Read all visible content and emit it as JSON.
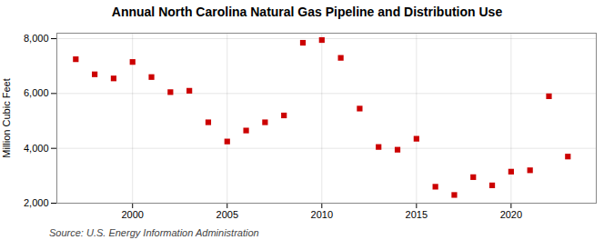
{
  "chart_data": {
    "type": "scatter",
    "title": "Annual North Carolina Natural Gas Pipeline and Distribution Use",
    "ylabel": "Million Cubic Feet",
    "annotations": [
      "Source: U.S. Energy Information Administration"
    ],
    "x": [
      1997,
      1998,
      1999,
      2000,
      2001,
      2002,
      2003,
      2004,
      2005,
      2006,
      2007,
      2008,
      2009,
      2010,
      2011,
      2012,
      2013,
      2014,
      2015,
      2016,
      2017,
      2018,
      2019,
      2020,
      2021,
      2022,
      2023
    ],
    "values": [
      7250,
      6700,
      6550,
      7150,
      6600,
      6050,
      6100,
      4950,
      4250,
      4650,
      4950,
      5200,
      7850,
      7950,
      7300,
      5450,
      4050,
      3950,
      4350,
      2600,
      2300,
      2950,
      2650,
      3150,
      3200,
      5900,
      3700
    ],
    "color": "#cc0000",
    "marker": "square",
    "xlim": [
      1996,
      2024.5
    ],
    "xticks": [
      2000,
      2005,
      2010,
      2015,
      2020
    ],
    "ylim": [
      2000,
      8200
    ],
    "yticks": [
      {
        "value": 2000,
        "label": "2,000"
      },
      {
        "value": 4000,
        "label": "4,000"
      },
      {
        "value": 6000,
        "label": "6,000"
      },
      {
        "value": 8000,
        "label": "8,000"
      }
    ],
    "grid": true
  }
}
